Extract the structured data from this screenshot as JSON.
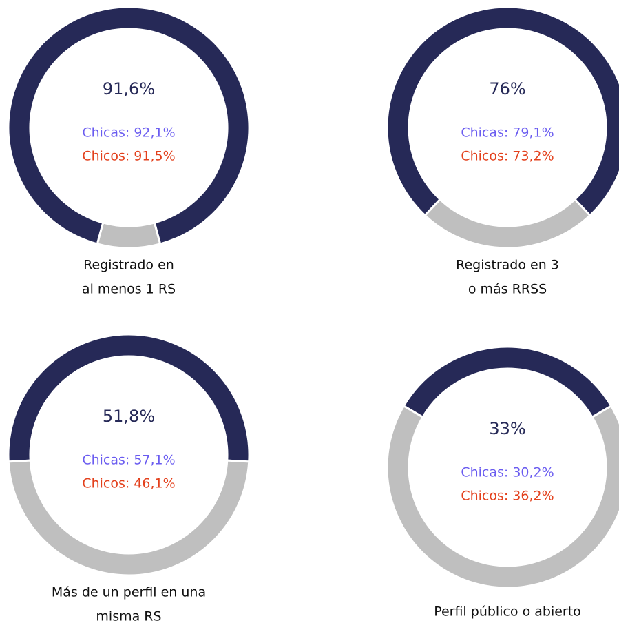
{
  "chart_data": [
    {
      "type": "donut",
      "values": [
        91.6,
        8.4
      ],
      "colors": [
        "#262957",
        "#bfbfbf"
      ],
      "center_label": "91,6%",
      "annotations": [
        "Chicas: 92,1%",
        "Chicos: 91,5%"
      ],
      "caption": [
        "Registrado en",
        "al menos 1 RS"
      ]
    },
    {
      "type": "donut",
      "values": [
        76,
        24
      ],
      "colors": [
        "#262957",
        "#bfbfbf"
      ],
      "center_label": "76%",
      "annotations": [
        "Chicas: 79,1%",
        "Chicos: 73,2%"
      ],
      "caption": [
        "Registrado en 3",
        "o más RRSS"
      ]
    },
    {
      "type": "donut",
      "values": [
        51.8,
        48.2
      ],
      "colors": [
        "#262957",
        "#bfbfbf"
      ],
      "center_label": "51,8%",
      "annotations": [
        "Chicas: 57,1%",
        "Chicos: 46,1%"
      ],
      "caption": [
        "Más de un perfil en una",
        "misma RS"
      ]
    },
    {
      "type": "donut",
      "values": [
        33,
        67
      ],
      "colors": [
        "#262957",
        "#bfbfbf"
      ],
      "center_label": "33%",
      "annotations": [
        "Chicas: 30,2%",
        "Chicos: 36,2%"
      ],
      "caption": [
        "Perfil público o abierto"
      ]
    }
  ]
}
